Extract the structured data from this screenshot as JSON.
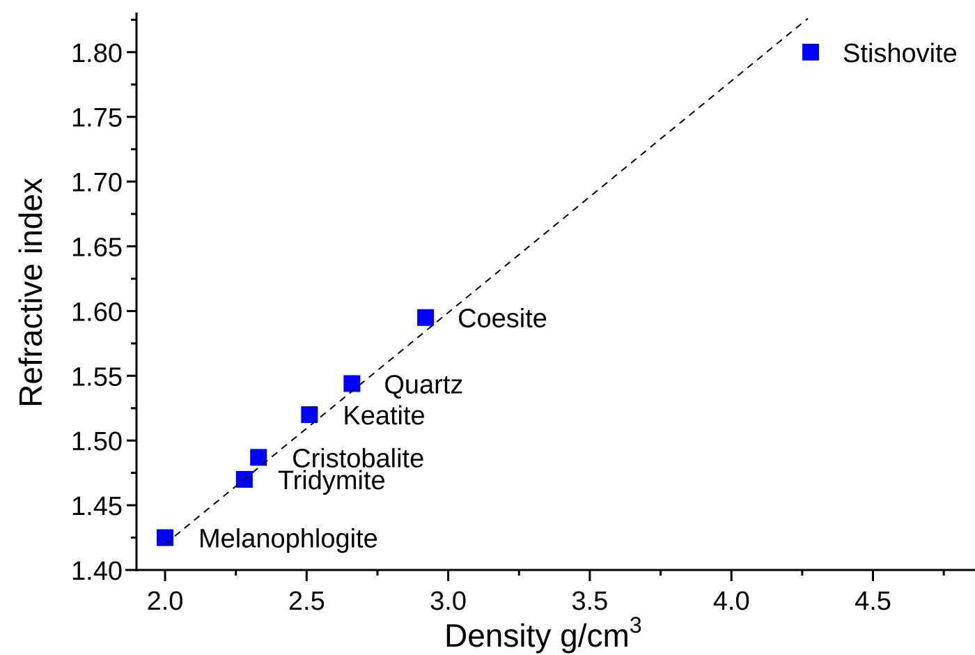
{
  "chart_data": {
    "type": "scatter",
    "title": "",
    "xlabel": "Density g/cm",
    "xlabel_superscript": "3",
    "ylabel": "Refractive index",
    "xlim": [
      1.9,
      4.87
    ],
    "ylim": [
      1.4,
      1.83
    ],
    "x_ticks": [
      2.0,
      2.5,
      3.0,
      3.5,
      4.0,
      4.5
    ],
    "x_tick_labels": [
      "2.0",
      "2.5",
      "3.0",
      "3.5",
      "4.0",
      "4.5"
    ],
    "x_minor_ticks": [
      2.25,
      2.75,
      3.25,
      3.75,
      4.25,
      4.75
    ],
    "y_ticks": [
      1.4,
      1.45,
      1.5,
      1.55,
      1.6,
      1.65,
      1.7,
      1.75,
      1.8
    ],
    "y_tick_labels": [
      "1.40",
      "1.45",
      "1.50",
      "1.55",
      "1.60",
      "1.65",
      "1.70",
      "1.75",
      "1.80"
    ],
    "y_minor_ticks": [
      1.425,
      1.475,
      1.525,
      1.575,
      1.625,
      1.675,
      1.725,
      1.775,
      1.825
    ],
    "grid": false,
    "marker_color": "#0000ff",
    "points": [
      {
        "name": "Melanophlogite",
        "x": 2.0,
        "y": 1.425
      },
      {
        "name": "Tridymite",
        "x": 2.28,
        "y": 1.47
      },
      {
        "name": "Cristobalite",
        "x": 2.33,
        "y": 1.487
      },
      {
        "name": "Keatite",
        "x": 2.51,
        "y": 1.52
      },
      {
        "name": "Quartz",
        "x": 2.66,
        "y": 1.544
      },
      {
        "name": "Coesite",
        "x": 2.92,
        "y": 1.595
      },
      {
        "name": "Stishovite",
        "x": 4.28,
        "y": 1.8
      }
    ],
    "fit_line": {
      "style": "dashed",
      "color": "#000000",
      "x": [
        2.0,
        4.27
      ],
      "y": [
        1.42,
        1.826
      ]
    }
  }
}
